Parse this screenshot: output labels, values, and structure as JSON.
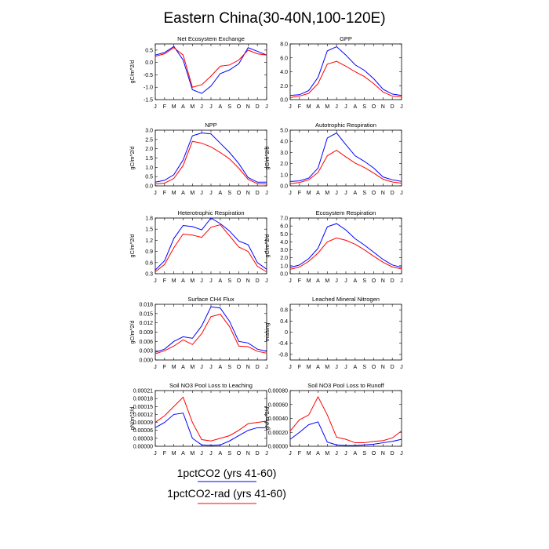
{
  "figure": {
    "title": "Eastern China(30-40N,100-120E)",
    "legend": [
      {
        "label": "1pctCO2 (yrs 41-60)",
        "color": "#0000ff"
      },
      {
        "label": "1pctCO2-rad (yrs 41-60)",
        "color": "#ff0000"
      }
    ]
  },
  "chart_data": [
    {
      "type": "line",
      "title": "Net Ecosystem Exchange",
      "ylabel": "gC/m^2/d",
      "x": [
        "J",
        "F",
        "M",
        "A",
        "M",
        "J",
        "J",
        "A",
        "S",
        "O",
        "N",
        "D",
        "J"
      ],
      "ylim": [
        -1.5,
        0.75
      ],
      "yticks": [
        -1.5,
        -1.0,
        -0.5,
        0.0,
        0.5
      ],
      "ytick_labels": [
        "-1.5",
        "-1.0",
        "-0.5",
        "0.0",
        "0.5"
      ],
      "series": [
        {
          "color": "#0000ff",
          "values": [
            0.3,
            0.4,
            0.65,
            0.1,
            -1.1,
            -1.25,
            -0.95,
            -0.45,
            -0.3,
            -0.05,
            0.6,
            0.45,
            0.3
          ]
        },
        {
          "color": "#ff0000",
          "values": [
            0.25,
            0.35,
            0.6,
            0.3,
            -1.0,
            -0.9,
            -0.55,
            -0.15,
            -0.1,
            0.1,
            0.5,
            0.35,
            0.3
          ]
        }
      ]
    },
    {
      "type": "line",
      "title": "GPP",
      "ylabel": "",
      "x": [
        "J",
        "F",
        "M",
        "A",
        "M",
        "J",
        "J",
        "A",
        "S",
        "O",
        "N",
        "D",
        "J"
      ],
      "ylim": [
        0,
        8
      ],
      "yticks": [
        0,
        2,
        4,
        6,
        8
      ],
      "ytick_labels": [
        "0.0",
        "2.0",
        "4.0",
        "6.0",
        "8.0"
      ],
      "series": [
        {
          "color": "#0000ff",
          "values": [
            0.6,
            0.7,
            1.3,
            3.2,
            7.0,
            7.6,
            6.4,
            5.0,
            4.2,
            3.0,
            1.5,
            0.8,
            0.6
          ]
        },
        {
          "color": "#ff0000",
          "values": [
            0.3,
            0.5,
            0.9,
            2.3,
            5.1,
            5.5,
            4.8,
            4.0,
            3.3,
            2.3,
            1.1,
            0.5,
            0.4
          ]
        }
      ]
    },
    {
      "type": "line",
      "title": "NPP",
      "ylabel": "gC/m^2/d",
      "x": [
        "J",
        "F",
        "M",
        "A",
        "M",
        "J",
        "J",
        "A",
        "S",
        "O",
        "N",
        "D",
        "J"
      ],
      "ylim": [
        0,
        3
      ],
      "yticks": [
        0,
        0.5,
        1,
        1.5,
        2,
        2.5,
        3
      ],
      "ytick_labels": [
        "0.0",
        "0.5",
        "1.0",
        "1.5",
        "2.0",
        "2.5",
        "3.0"
      ],
      "series": [
        {
          "color": "#0000ff",
          "values": [
            0.2,
            0.3,
            0.6,
            1.4,
            2.7,
            2.85,
            2.8,
            2.3,
            1.8,
            1.2,
            0.45,
            0.2,
            0.2
          ]
        },
        {
          "color": "#ff0000",
          "values": [
            0.1,
            0.15,
            0.4,
            1.1,
            2.4,
            2.3,
            2.1,
            1.8,
            1.45,
            0.95,
            0.35,
            0.12,
            0.1
          ]
        }
      ]
    },
    {
      "type": "line",
      "title": "Autotrophic Respiration",
      "ylabel": "gC/m^2/d",
      "x": [
        "J",
        "F",
        "M",
        "A",
        "M",
        "J",
        "J",
        "A",
        "S",
        "O",
        "N",
        "D",
        "J"
      ],
      "ylim": [
        0,
        5
      ],
      "yticks": [
        0,
        1,
        2,
        3,
        4,
        5
      ],
      "ytick_labels": [
        "0.0",
        "1.0",
        "2.0",
        "3.0",
        "4.0",
        "5.0"
      ],
      "series": [
        {
          "color": "#0000ff",
          "values": [
            0.4,
            0.45,
            0.7,
            1.6,
            4.3,
            4.75,
            3.7,
            2.7,
            2.2,
            1.6,
            0.8,
            0.55,
            0.4
          ]
        },
        {
          "color": "#ff0000",
          "values": [
            0.2,
            0.3,
            0.55,
            1.2,
            2.7,
            3.2,
            2.6,
            2.05,
            1.65,
            1.15,
            0.6,
            0.35,
            0.25
          ]
        }
      ]
    },
    {
      "type": "line",
      "title": "Heterotrophic Respiration",
      "ylabel": "gC/m^2/d",
      "x": [
        "J",
        "F",
        "M",
        "A",
        "M",
        "J",
        "J",
        "A",
        "S",
        "O",
        "N",
        "D",
        "J"
      ],
      "ylim": [
        0.3,
        1.8
      ],
      "yticks": [
        0.3,
        0.6,
        0.9,
        1.2,
        1.5,
        1.8
      ],
      "ytick_labels": [
        "0.3",
        "0.6",
        "0.9",
        "1.2",
        "1.5",
        "1.8"
      ],
      "series": [
        {
          "color": "#0000ff",
          "values": [
            0.4,
            0.65,
            1.25,
            1.6,
            1.57,
            1.48,
            1.8,
            1.65,
            1.45,
            1.18,
            1.08,
            0.6,
            0.42
          ]
        },
        {
          "color": "#ff0000",
          "values": [
            0.35,
            0.55,
            1.0,
            1.37,
            1.34,
            1.28,
            1.55,
            1.62,
            1.32,
            1.02,
            0.9,
            0.5,
            0.35
          ]
        }
      ]
    },
    {
      "type": "line",
      "title": "Ecosystem Respiration",
      "ylabel": "gC/m^2/d",
      "x": [
        "J",
        "F",
        "M",
        "A",
        "M",
        "J",
        "J",
        "A",
        "S",
        "O",
        "N",
        "D",
        "J"
      ],
      "ylim": [
        0,
        7
      ],
      "yticks": [
        0,
        1,
        2,
        3,
        4,
        5,
        6,
        7
      ],
      "ytick_labels": [
        "0.0",
        "1.0",
        "2.0",
        "3.0",
        "4.0",
        "5.0",
        "6.0",
        "7.0"
      ],
      "series": [
        {
          "color": "#0000ff",
          "values": [
            0.8,
            1.1,
            1.9,
            3.2,
            5.9,
            6.3,
            5.5,
            4.4,
            3.6,
            2.7,
            1.8,
            1.1,
            0.8
          ]
        },
        {
          "color": "#ff0000",
          "values": [
            0.55,
            0.85,
            1.55,
            2.6,
            4.0,
            4.5,
            4.2,
            3.7,
            3.0,
            2.2,
            1.45,
            0.85,
            0.6
          ]
        }
      ]
    },
    {
      "type": "line",
      "title": "Surface CH4 Flux",
      "ylabel": "gC/m^2/d",
      "x": [
        "J",
        "F",
        "M",
        "A",
        "M",
        "J",
        "J",
        "A",
        "S",
        "O",
        "N",
        "D",
        "J"
      ],
      "ylim": [
        0,
        0.018
      ],
      "yticks": [
        0,
        0.003,
        0.006,
        0.009,
        0.012,
        0.015,
        0.018
      ],
      "ytick_labels": [
        "0.000",
        "0.003",
        "0.006",
        "0.009",
        "0.012",
        "0.015",
        "0.018"
      ],
      "series": [
        {
          "color": "#0000ff",
          "values": [
            0.0025,
            0.0035,
            0.006,
            0.0075,
            0.007,
            0.011,
            0.0172,
            0.0168,
            0.0125,
            0.006,
            0.0055,
            0.0035,
            0.0028
          ]
        },
        {
          "color": "#ff0000",
          "values": [
            0.002,
            0.003,
            0.0045,
            0.0065,
            0.005,
            0.0085,
            0.014,
            0.0148,
            0.0108,
            0.0045,
            0.0043,
            0.0028,
            0.0022
          ]
        }
      ]
    },
    {
      "type": "line",
      "title": "Leached Mineral Nitrogen",
      "ylabel": "missing",
      "x": [
        "J",
        "F",
        "M",
        "A",
        "M",
        "J",
        "J",
        "A",
        "S",
        "O",
        "N",
        "D",
        "J"
      ],
      "ylim": [
        -1,
        1
      ],
      "yticks": [
        -0.8,
        -0.4,
        0,
        0.4,
        0.8
      ],
      "ytick_labels": [
        "-0.8",
        "-0.4",
        "0",
        "0.4",
        "0.8"
      ],
      "series": []
    },
    {
      "type": "line",
      "title": "Soil NO3 Pool Loss to Leaching",
      "ylabel": "gN/m^2/d",
      "x": [
        "J",
        "F",
        "M",
        "A",
        "M",
        "J",
        "J",
        "A",
        "S",
        "O",
        "N",
        "D",
        "J"
      ],
      "ylim": [
        0,
        0.00021
      ],
      "yticks": [
        0,
        3e-05,
        6e-05,
        9e-05,
        0.00012,
        0.00015,
        0.00018,
        0.00021
      ],
      "ytick_labels": [
        "0.00000",
        "0.00003",
        "0.00006",
        "0.00009",
        "0.00012",
        "0.00015",
        "0.00018",
        "0.00021"
      ],
      "series": [
        {
          "color": "#0000ff",
          "values": [
            7e-05,
            9e-05,
            0.00012,
            0.000125,
            3e-05,
            5e-06,
            3e-06,
            5e-06,
            2e-05,
            4e-05,
            6e-05,
            7e-05,
            7e-05
          ]
        },
        {
          "color": "#ff0000",
          "values": [
            9e-05,
            0.000115,
            0.00015,
            0.000185,
            9e-05,
            2.5e-05,
            2e-05,
            3e-05,
            4e-05,
            6e-05,
            8.5e-05,
            9e-05,
            9.5e-05
          ]
        }
      ]
    },
    {
      "type": "line",
      "title": "Soil NO3 Pool Loss to Runoff",
      "ylabel": "gN/m^2/d",
      "x": [
        "J",
        "F",
        "M",
        "A",
        "M",
        "J",
        "J",
        "A",
        "S",
        "O",
        "N",
        "D",
        "J"
      ],
      "ylim": [
        0,
        0.0008
      ],
      "yticks": [
        0,
        0.0002,
        0.0004,
        0.0006,
        0.0008
      ],
      "ytick_labels": [
        "0.00000",
        "0.00020",
        "0.00040",
        "0.00060",
        "0.00080"
      ],
      "series": [
        {
          "color": "#0000ff",
          "values": [
            0.0001,
            0.0002,
            0.00031,
            0.00035,
            6e-05,
            2e-05,
            1e-05,
            1e-05,
            2e-05,
            3e-05,
            5e-05,
            7e-05,
            0.0001
          ]
        },
        {
          "color": "#ff0000",
          "values": [
            0.00022,
            0.00038,
            0.00045,
            0.00071,
            0.00045,
            0.00013,
            0.0001,
            5e-05,
            5e-05,
            7e-05,
            8e-05,
            0.00012,
            0.00022
          ]
        }
      ]
    }
  ]
}
